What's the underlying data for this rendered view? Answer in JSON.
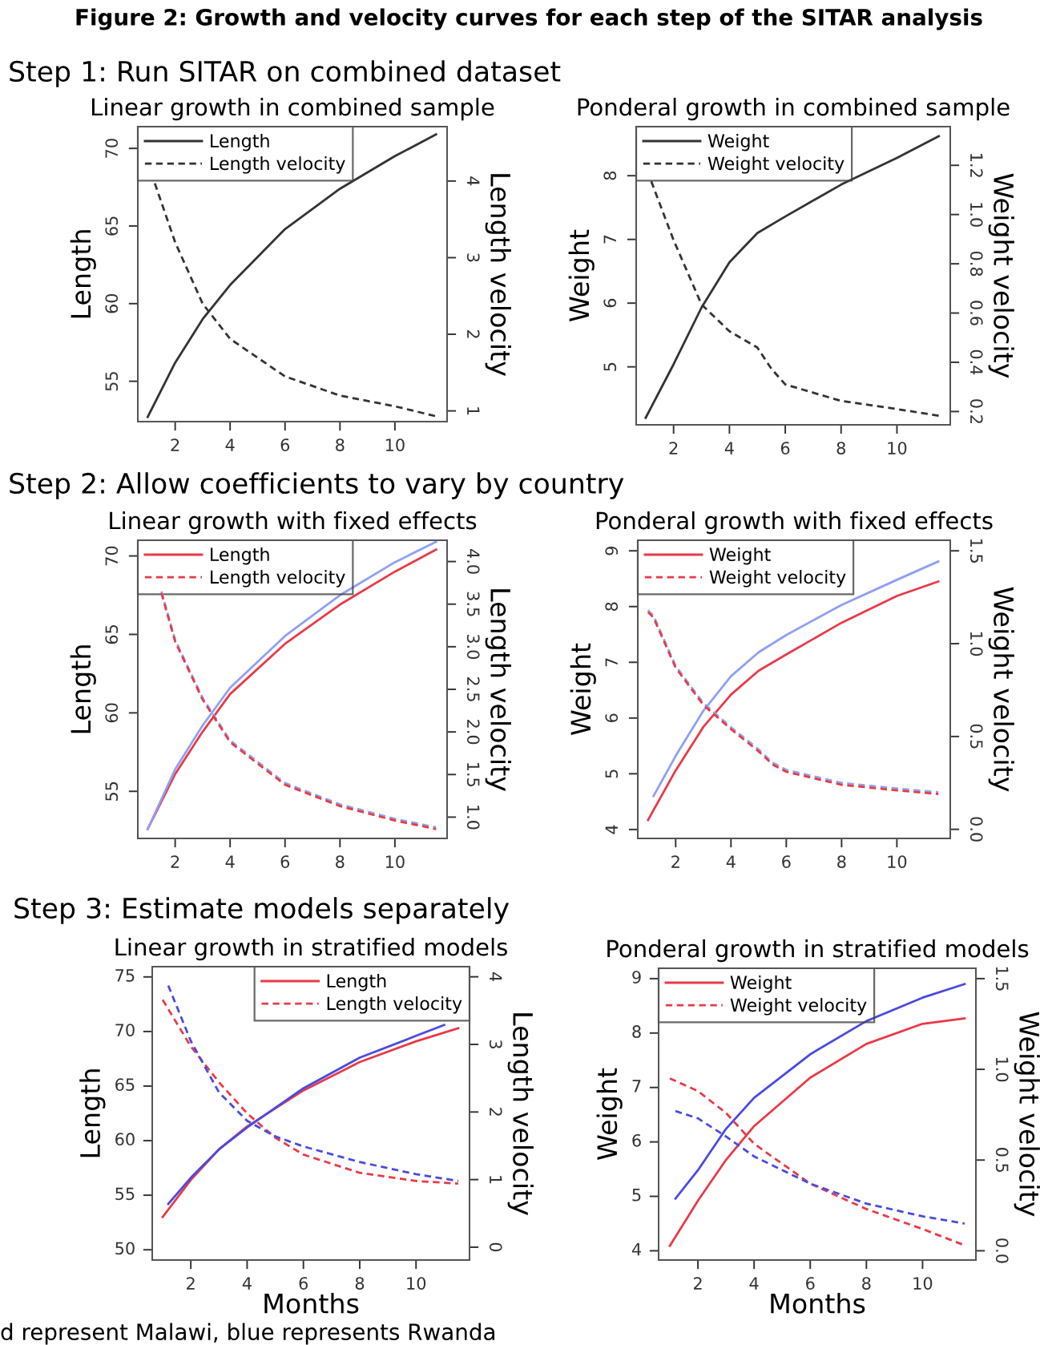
{
  "chart_data": [
    {
      "type": "line",
      "title": "Linear growth in combined sample",
      "ylabel": "Length",
      "y2label": "Length velocity",
      "xlim": [
        0.64,
        11.9
      ],
      "xticks": [
        2,
        4,
        6,
        8,
        10
      ],
      "ylim": [
        52.4,
        71.4
      ],
      "yticks": [
        55,
        60,
        65,
        70
      ],
      "y2lim": [
        0.86,
        4.71
      ],
      "y2ticks": [
        1,
        2,
        3,
        4
      ],
      "legend": "top left",
      "annotations": [
        "Figure 2: Growth and velocity curves for each step of the SITAR analysis",
        "Step 1: Run SITAR on combined dataset"
      ],
      "series": [
        {
          "name": "Length",
          "color": "#333333",
          "line_style": "solid",
          "x": [
            1,
            2,
            3,
            4,
            6,
            8,
            10,
            11.5
          ],
          "values": [
            52.7,
            56.2,
            59.0,
            61.2,
            64.8,
            67.4,
            69.5,
            70.9
          ]
        },
        {
          "name": "Length velocity",
          "color": "#333333",
          "line_style": "dashed",
          "axis": "y2",
          "x": [
            1.26,
            2,
            3,
            4,
            6,
            8,
            10,
            11.5
          ],
          "values": [
            3.97,
            3.2,
            2.4,
            1.94,
            1.45,
            1.2,
            1.06,
            0.93
          ]
        }
      ]
    },
    {
      "type": "line",
      "title": "Ponderal growth in combined sample",
      "ylabel": "Weight",
      "y2label": "Weight velocity",
      "xlim": [
        0.66,
        11.91
      ],
      "xticks": [
        2,
        4,
        6,
        8,
        10
      ],
      "ylim": [
        4.09,
        8.77
      ],
      "yticks": [
        5,
        6,
        7,
        8
      ],
      "y2lim": [
        0.146,
        1.357
      ],
      "y2ticks": [
        {
          "value": 0.2,
          "label": "0.2"
        },
        {
          "value": 0.4,
          "label": "0.4"
        },
        {
          "value": 0.6,
          "label": "0.6"
        },
        {
          "value": 0.8,
          "label": "0.8"
        },
        {
          "value": 1.0,
          "label": "1.0"
        },
        {
          "value": 1.2,
          "label": "1.2"
        }
      ],
      "legend": "top left",
      "series": [
        {
          "name": "Weight",
          "color": "#333333",
          "line_style": "solid",
          "x": [
            1,
            2,
            3,
            4,
            5,
            6,
            8,
            10,
            11.5
          ],
          "values": [
            4.2,
            5.04,
            5.93,
            6.64,
            7.1,
            7.36,
            7.86,
            8.28,
            8.62
          ]
        },
        {
          "name": "Weight velocity",
          "color": "#333333",
          "line_style": "dashed",
          "axis": "y2",
          "x": [
            1.2,
            2,
            3,
            4,
            5,
            5.5,
            6,
            8,
            10,
            11.5
          ],
          "values": [
            1.135,
            0.896,
            0.635,
            0.526,
            0.46,
            0.374,
            0.31,
            0.243,
            0.21,
            0.183
          ]
        }
      ]
    },
    {
      "type": "line",
      "title": "Linear growth with fixed effects",
      "ylabel": "Length",
      "y2label": "Length velocity",
      "xlim": [
        0.64,
        11.9
      ],
      "xticks": [
        2,
        4,
        6,
        8,
        10
      ],
      "ylim": [
        52.0,
        71.0
      ],
      "yticks": [
        55,
        60,
        65,
        70
      ],
      "y2lim": [
        0.75,
        4.25
      ],
      "y2ticks": [
        {
          "value": 1.0,
          "label": "1.0"
        },
        {
          "value": 1.5,
          "label": "1.5"
        },
        {
          "value": 2.0,
          "label": "2.0"
        },
        {
          "value": 2.5,
          "label": "2.5"
        },
        {
          "value": 3.0,
          "label": "3.0"
        },
        {
          "value": 3.5,
          "label": "3.5"
        },
        {
          "value": 4.0,
          "label": "4.0"
        }
      ],
      "legend": "top left",
      "annotations": [
        "Step 2: Allow coefficients to vary by country"
      ],
      "series": [
        {
          "name": "Length",
          "color": "#e83a48",
          "line_style": "solid",
          "x": [
            1,
            2,
            3,
            4,
            6,
            8,
            10,
            11.5
          ],
          "values": [
            52.6,
            56.1,
            58.8,
            61.2,
            64.4,
            66.9,
            69.0,
            70.4
          ]
        },
        {
          "color": "#8fa0f2",
          "line_style": "solid",
          "x": [
            1,
            2,
            3,
            4,
            6,
            8,
            10,
            11.5
          ],
          "values": [
            52.6,
            56.4,
            59.2,
            61.6,
            64.9,
            67.5,
            69.6,
            70.9
          ]
        },
        {
          "color": "#8fa0f2",
          "line_style": "dashed",
          "axis": "y2",
          "x": [
            1.5,
            2,
            3,
            4,
            6,
            8,
            10,
            11.5
          ],
          "values": [
            3.65,
            3.08,
            2.4,
            1.9,
            1.4,
            1.15,
            0.98,
            0.88
          ]
        },
        {
          "name": "Length velocity",
          "color": "#e83a48",
          "line_style": "dashed",
          "axis": "y2",
          "x": [
            1.5,
            2,
            3,
            4,
            6,
            8,
            10,
            11.5
          ],
          "values": [
            3.63,
            3.06,
            2.38,
            1.88,
            1.38,
            1.13,
            0.96,
            0.86
          ]
        }
      ]
    },
    {
      "type": "line",
      "title": "Ponderal growth with fixed effects",
      "ylabel": "Weight",
      "y2label": "Weight velocity",
      "xlim": [
        0.63,
        11.93
      ],
      "xticks": [
        2,
        4,
        6,
        8,
        10
      ],
      "ylim": [
        3.84,
        9.19
      ],
      "yticks": [
        4,
        5,
        6,
        7,
        8,
        9
      ],
      "y2lim": [
        -0.049,
        1.557
      ],
      "y2ticks": [
        {
          "value": 0.0,
          "label": "0.0"
        },
        {
          "value": 0.5,
          "label": "0.5"
        },
        {
          "value": 1.0,
          "label": "1.0"
        },
        {
          "value": 1.5,
          "label": "1.5"
        }
      ],
      "legend": "top left",
      "series": [
        {
          "name": "Weight",
          "color": "#e83a48",
          "line_style": "solid",
          "x": [
            1,
            2,
            3,
            4,
            5,
            6,
            8,
            10,
            11.5
          ],
          "values": [
            4.17,
            5.06,
            5.84,
            6.42,
            6.85,
            7.14,
            7.71,
            8.19,
            8.45
          ]
        },
        {
          "color": "#8fa0f2",
          "line_style": "solid",
          "x": [
            1.2,
            2,
            3,
            4,
            5,
            6,
            8,
            10,
            11.5
          ],
          "values": [
            4.6,
            5.32,
            6.13,
            6.75,
            7.18,
            7.49,
            8.03,
            8.48,
            8.81
          ]
        },
        {
          "color": "#8fa0f2",
          "line_style": "dashed",
          "axis": "y2",
          "x": [
            1,
            1.2,
            2,
            3,
            4,
            5,
            5.5,
            6,
            8,
            10,
            11.5
          ],
          "values": [
            1.18,
            1.15,
            0.88,
            0.68,
            0.55,
            0.43,
            0.36,
            0.32,
            0.25,
            0.22,
            0.2
          ]
        },
        {
          "name": "Weight velocity",
          "color": "#e83a48",
          "line_style": "dashed",
          "axis": "y2",
          "x": [
            1,
            1.2,
            2,
            3,
            4,
            5,
            5.5,
            6,
            8,
            10,
            11.5
          ],
          "values": [
            1.17,
            1.14,
            0.87,
            0.67,
            0.54,
            0.42,
            0.35,
            0.31,
            0.24,
            0.21,
            0.19
          ]
        }
      ]
    },
    {
      "type": "line",
      "title": "Linear growth in stratified models",
      "xlabel": "Months",
      "ylabel": "Length",
      "y2label": "Length velocity",
      "xlim": [
        0.63,
        11.9
      ],
      "xticks": [
        2,
        4,
        6,
        8,
        10
      ],
      "ylim": [
        49.06,
        75.94
      ],
      "yticks": [
        50,
        55,
        60,
        65,
        70,
        75
      ],
      "y2lim": [
        -0.19,
        4.15
      ],
      "y2ticks": [
        0,
        1,
        2,
        3,
        4
      ],
      "legend": "top right",
      "annotations": [
        "Step 3: Estimate models separately",
        "d represent Malawi, blue represents Rwanda"
      ],
      "series": [
        {
          "name": "Length",
          "color": "#e83a48",
          "line_style": "solid",
          "x": [
            1,
            2,
            3,
            4,
            6,
            8,
            10,
            11.5
          ],
          "values": [
            53.0,
            56.4,
            59.2,
            61.3,
            64.6,
            67.2,
            69.1,
            70.3
          ]
        },
        {
          "color": "#4a4ae0",
          "line_style": "solid",
          "x": [
            1.2,
            2,
            3,
            4,
            6,
            8,
            10,
            11
          ],
          "values": [
            54.2,
            56.6,
            59.2,
            61.2,
            64.8,
            67.6,
            69.6,
            70.6
          ]
        },
        {
          "name": "Length velocity",
          "color": "#e83a48",
          "line_style": "dashed",
          "axis": "y2",
          "x": [
            1,
            2,
            3,
            4,
            5,
            6,
            8,
            10,
            11.5
          ],
          "values": [
            3.66,
            2.97,
            2.44,
            1.98,
            1.62,
            1.37,
            1.1,
            0.98,
            0.94
          ]
        },
        {
          "color": "#4a4ae0",
          "line_style": "dashed",
          "axis": "y2",
          "x": [
            1.2,
            2,
            3,
            4,
            5,
            6,
            8,
            10,
            11.5
          ],
          "values": [
            3.87,
            3.05,
            2.29,
            1.87,
            1.64,
            1.49,
            1.26,
            1.08,
            0.98
          ]
        }
      ]
    },
    {
      "type": "line",
      "title": "Ponderal growth in stratified models",
      "xlabel": "Months",
      "ylabel": "Weight",
      "y2label": "Weight velocity",
      "xlim": [
        0.6,
        11.9
      ],
      "xticks": [
        2,
        4,
        6,
        8,
        10
      ],
      "ylim": [
        3.83,
        9.19
      ],
      "yticks": [
        4,
        5,
        6,
        7,
        8,
        9
      ],
      "y2lim": [
        -0.051,
        1.557
      ],
      "y2ticks": [
        {
          "value": 0.0,
          "label": "0.0"
        },
        {
          "value": 0.5,
          "label": "0.5"
        },
        {
          "value": 1.0,
          "label": "1.0"
        },
        {
          "value": 1.5,
          "label": "1.5"
        }
      ],
      "legend": "top left",
      "series": [
        {
          "name": "Weight",
          "color": "#e83a48",
          "line_style": "solid",
          "x": [
            1,
            2,
            3,
            4,
            6,
            8,
            10,
            11.5
          ],
          "values": [
            4.09,
            4.92,
            5.67,
            6.29,
            7.18,
            7.8,
            8.17,
            8.27
          ]
        },
        {
          "color": "#4a4ae0",
          "line_style": "solid",
          "x": [
            1.2,
            2,
            3,
            4,
            6,
            8,
            10,
            11.5
          ],
          "values": [
            4.96,
            5.48,
            6.24,
            6.81,
            7.61,
            8.22,
            8.65,
            8.9
          ]
        },
        {
          "name": "Weight velocity",
          "color": "#e83a48",
          "line_style": "dashed",
          "axis": "y2",
          "x": [
            1,
            2,
            3,
            4,
            6,
            8,
            10,
            11.5
          ],
          "values": [
            0.95,
            0.88,
            0.76,
            0.59,
            0.37,
            0.23,
            0.12,
            0.03
          ]
        },
        {
          "color": "#4a4ae0",
          "line_style": "dashed",
          "axis": "y2",
          "x": [
            1.2,
            2,
            3,
            4,
            6,
            8,
            10,
            11.5
          ],
          "values": [
            0.77,
            0.73,
            0.63,
            0.52,
            0.37,
            0.26,
            0.19,
            0.15
          ]
        }
      ]
    }
  ]
}
